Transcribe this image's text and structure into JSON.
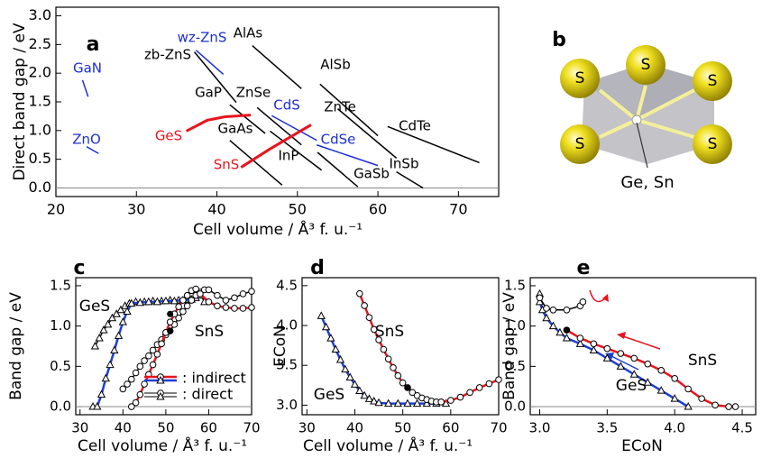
{
  "chart_data": [
    {
      "type": "line",
      "panel": "a",
      "x_label": "Cell volume / Å³ f. u.⁻¹",
      "y_label": "Direct band gap / eV",
      "xlim": [
        20,
        75
      ],
      "ylim": [
        -0.15,
        3.15
      ],
      "xticks": [
        20,
        30,
        40,
        50,
        60,
        70
      ],
      "yticks": [
        {
          "value": 0,
          "label": "0.0"
        },
        0.5,
        {
          "value": 1,
          "label": "1.0"
        },
        1.5,
        {
          "value": 2,
          "label": "2.0"
        },
        2.5,
        {
          "value": 3,
          "label": "3.0"
        }
      ],
      "zero_line": true,
      "series": [
        {
          "name": "GaN",
          "color": "#1d2fd0",
          "x": [
            23.3,
            24.0
          ],
          "values": [
            1.88,
            1.59
          ]
        },
        {
          "name": "ZnO",
          "color": "#1d2fd0",
          "x": [
            23.8,
            25.3
          ],
          "values": [
            0.72,
            0.6
          ]
        },
        {
          "name": "wz-ZnS",
          "color": "#1d2fd0",
          "x": [
            37.4,
            40.8
          ],
          "values": [
            2.4,
            1.98
          ]
        },
        {
          "name": "zb-ZnS",
          "color": "#000000",
          "x": [
            37.2,
            42.4
          ],
          "values": [
            2.37,
            1.49
          ]
        },
        {
          "name": "AlAs",
          "color": "#000000",
          "x": [
            44.4,
            50.5
          ],
          "values": [
            2.48,
            1.73
          ]
        },
        {
          "name": "AlSb",
          "color": "#000000",
          "x": [
            52.8,
            60.0
          ],
          "values": [
            1.81,
            0.91
          ]
        },
        {
          "name": "GaP",
          "color": "#000000",
          "x": [
            41.6,
            46.0
          ],
          "values": [
            1.45,
            0.95
          ]
        },
        {
          "name": "ZnSe",
          "color": "#000000",
          "x": [
            45.0,
            50.5
          ],
          "values": [
            1.4,
            0.75
          ]
        },
        {
          "name": "ZnTe",
          "color": "#000000",
          "x": [
            55.0,
            62.3
          ],
          "values": [
            1.38,
            0.52
          ]
        },
        {
          "name": "CdTe",
          "color": "#000000",
          "x": [
            61.2,
            72.6
          ],
          "values": [
            1.07,
            0.44
          ]
        },
        {
          "name": "CdS",
          "color": "#1d2fd0",
          "x": [
            46.8,
            52.4
          ],
          "values": [
            1.26,
            0.83
          ]
        },
        {
          "name": "CdSe",
          "color": "#1d2fd0",
          "x": [
            52.4,
            60.0
          ],
          "values": [
            0.75,
            0.39
          ]
        },
        {
          "name": "GaAs",
          "color": "#000000",
          "x": [
            41.6,
            48.1
          ],
          "values": [
            0.83,
            0.05
          ]
        },
        {
          "name": "InP",
          "color": "#000000",
          "x": [
            46.6,
            53.0
          ],
          "values": [
            0.99,
            0.31
          ]
        },
        {
          "name": "GaSb",
          "color": "#000000",
          "x": [
            52.5,
            57.5
          ],
          "values": [
            0.62,
            0.02
          ]
        },
        {
          "name": "InSb",
          "color": "#000000",
          "x": [
            62.3,
            65.6
          ],
          "values": [
            0.28,
            0.0
          ]
        },
        {
          "name": "GeS",
          "color": "#e8141e",
          "width": 3,
          "x": [
            36.2,
            38.8,
            41.0,
            44.2
          ],
          "values": [
            0.99,
            1.18,
            1.24,
            1.27
          ]
        },
        {
          "name": "SnS",
          "color": "#e8141e",
          "width": 3,
          "x": [
            43.0,
            46.6,
            51.7
          ],
          "values": [
            0.36,
            0.68,
            1.1
          ]
        }
      ]
    },
    {
      "type": "line",
      "panel": "c",
      "x_label": "Cell volume / Å³ f. u.⁻¹",
      "y_label": "Band gap / eV",
      "xlim": [
        29,
        70
      ],
      "ylim": [
        -0.1,
        1.6
      ],
      "xticks": [
        30,
        40,
        50,
        60,
        70
      ],
      "yticks": [
        {
          "value": 0,
          "label": "0.0"
        },
        0.5,
        {
          "value": 1,
          "label": "1.0"
        },
        1.5
      ],
      "zero_line": true,
      "annotations": [
        "GeS",
        "SnS"
      ],
      "legend": [
        {
          "label": ": indirect",
          "colors": [
            "#e8141e",
            "#1d3fd6"
          ]
        },
        {
          "label": ": direct",
          "colors": [
            "#000000"
          ]
        }
      ],
      "series": [
        {
          "color": "#000000",
          "marker": "triangle",
          "x": [
            33.5,
            34.5,
            35.5,
            36.5,
            37.5,
            38.5,
            39.5,
            40.5,
            41.5,
            43,
            45,
            47,
            49,
            51,
            53,
            55,
            57,
            58,
            59
          ],
          "values": [
            0.75,
            0.85,
            0.95,
            1.02,
            1.1,
            1.15,
            1.2,
            1.25,
            1.28,
            1.3,
            1.3,
            1.31,
            1.31,
            1.32,
            1.32,
            1.33,
            1.35,
            1.4,
            1.3
          ]
        },
        {
          "color": "#1d3fd6",
          "width": 2.5,
          "marker": "triangle",
          "x": [
            33,
            34,
            35,
            36,
            37,
            38,
            39,
            40,
            41,
            42,
            44,
            46,
            48,
            50,
            52,
            54,
            56,
            58
          ],
          "values": [
            0,
            0,
            0.15,
            0.35,
            0.52,
            0.7,
            0.88,
            1.05,
            1.18,
            1.28,
            1.29,
            1.3,
            1.3,
            1.31,
            1.31,
            1.32,
            1.33,
            1.38
          ]
        },
        {
          "color": "#000000",
          "marker": "circle",
          "x": [
            40,
            41,
            42,
            43,
            44,
            45,
            46,
            47,
            48,
            49,
            50,
            51,
            52,
            53,
            54,
            55,
            56,
            57,
            58,
            59,
            60,
            62,
            64,
            66,
            68,
            70
          ],
          "values": [
            0.22,
            0.28,
            0.34,
            0.42,
            0.5,
            0.57,
            0.63,
            0.7,
            0.77,
            0.83,
            0.89,
            0.94,
            1.02,
            1.1,
            1.18,
            1.25,
            1.32,
            1.38,
            1.42,
            1.45,
            1.45,
            1.38,
            1.32,
            1.35,
            1.4,
            1.43
          ]
        },
        {
          "color": "#e8141e",
          "width": 2.5,
          "marker": "circle",
          "x": [
            42,
            43,
            44,
            45,
            46,
            47,
            48,
            49,
            50,
            51,
            52,
            53,
            54,
            55,
            56,
            57,
            58,
            60,
            62,
            64,
            66,
            68,
            70
          ],
          "values": [
            0,
            0.05,
            0.15,
            0.28,
            0.4,
            0.52,
            0.65,
            0.78,
            0.92,
            1.05,
            1.15,
            1.24,
            1.32,
            1.38,
            1.44,
            1.46,
            1.4,
            1.3,
            1.25,
            1.23,
            1.22,
            1.22,
            1.23
          ]
        },
        {
          "color": "#000000",
          "marker": "dot",
          "x": [
            51,
            51
          ],
          "values": [
            1.15,
            0.94
          ]
        }
      ]
    },
    {
      "type": "line",
      "panel": "d",
      "x_label": "Cell volume / Å³ f. u.⁻¹",
      "y_label": "ECoN",
      "xlim": [
        29,
        70
      ],
      "ylim": [
        2.88,
        4.6
      ],
      "xticks": [
        30,
        40,
        50,
        60,
        70
      ],
      "yticks": [
        {
          "value": 3,
          "label": "3.0"
        },
        3.5,
        {
          "value": 4,
          "label": "4.0"
        },
        4.5
      ],
      "zero_line": false,
      "annotations": [
        "SnS",
        "GeS"
      ],
      "series": [
        {
          "color": "#1d3fd6",
          "width": 2.5,
          "marker": "triangle",
          "x": [
            33,
            34,
            35,
            36,
            37,
            38,
            39,
            40,
            41,
            42,
            43,
            44,
            45,
            47,
            49,
            51,
            53,
            55,
            57,
            59
          ],
          "values": [
            4.12,
            3.98,
            3.84,
            3.7,
            3.57,
            3.45,
            3.35,
            3.26,
            3.18,
            3.12,
            3.08,
            3.05,
            3.03,
            3.02,
            3.02,
            3.02,
            3.02,
            3.02,
            3.02,
            3.02
          ]
        },
        {
          "color": "#e8141e",
          "width": 2.5,
          "marker": "circle",
          "x": [
            41,
            42,
            43,
            44,
            45,
            46,
            47,
            48,
            49,
            50,
            51,
            52,
            53,
            54,
            55,
            56,
            57,
            58,
            60,
            62,
            64,
            66,
            68,
            70
          ],
          "values": [
            4.4,
            4.25,
            4.1,
            3.95,
            3.82,
            3.7,
            3.58,
            3.47,
            3.37,
            3.28,
            3.22,
            3.16,
            3.12,
            3.09,
            3.07,
            3.05,
            3.04,
            3.04,
            3.06,
            3.1,
            3.16,
            3.22,
            3.27,
            3.32
          ]
        },
        {
          "color": "#000000",
          "marker": "dot",
          "x": [
            51
          ],
          "values": [
            3.22
          ]
        }
      ]
    },
    {
      "type": "line",
      "panel": "e",
      "x_label": "ECoN",
      "y_label": "Band gap / eV",
      "xlim": [
        2.93,
        4.6
      ],
      "ylim": [
        -0.1,
        1.6
      ],
      "xticks": [
        {
          "value": 3,
          "label": "3.0"
        },
        3.5,
        {
          "value": 4,
          "label": "4.0"
        },
        4.5
      ],
      "yticks": [
        {
          "value": 0,
          "label": "0.0"
        },
        0.5,
        {
          "value": 1,
          "label": "1.0"
        },
        1.5
      ],
      "zero_line": true,
      "annotations": [
        "SnS",
        "GeS"
      ],
      "series": [
        {
          "color": "#1d3fd6",
          "width": 2.5,
          "marker": "triangle",
          "x": [
            3.0,
            3.0,
            3.02,
            3.05,
            3.1,
            3.15,
            3.2,
            3.3,
            3.4,
            3.5,
            3.6,
            3.7,
            3.8,
            3.9,
            4.0,
            4.1
          ],
          "values": [
            1.4,
            1.3,
            1.2,
            1.1,
            1.0,
            0.92,
            0.85,
            0.78,
            0.7,
            0.6,
            0.5,
            0.4,
            0.3,
            0.2,
            0.1,
            0.0
          ]
        },
        {
          "color": "#e8141e",
          "width": 2.5,
          "marker": "circle",
          "x": [
            3.2,
            3.3,
            3.4,
            3.5,
            3.6,
            3.7,
            3.8,
            3.9,
            4.0,
            4.1,
            4.2,
            4.3,
            4.4,
            4.45
          ],
          "values": [
            0.95,
            0.85,
            0.78,
            0.72,
            0.66,
            0.6,
            0.53,
            0.45,
            0.35,
            0.22,
            0.1,
            0.02,
            0,
            0
          ]
        },
        {
          "color": "#000000",
          "marker": "circle",
          "x": [
            3.0,
            3.05,
            3.1,
            3.2,
            3.3,
            3.32
          ],
          "values": [
            1.35,
            1.22,
            1.2,
            1.2,
            1.25,
            1.3
          ]
        },
        {
          "color": "#000000",
          "marker": "dot",
          "x": [
            3.2
          ],
          "values": [
            0.95
          ]
        }
      ]
    }
  ],
  "diagram": {
    "panel": "b",
    "atoms": [
      "S",
      "S",
      "S",
      "S",
      "S"
    ],
    "center_label": "Ge, Sn"
  }
}
